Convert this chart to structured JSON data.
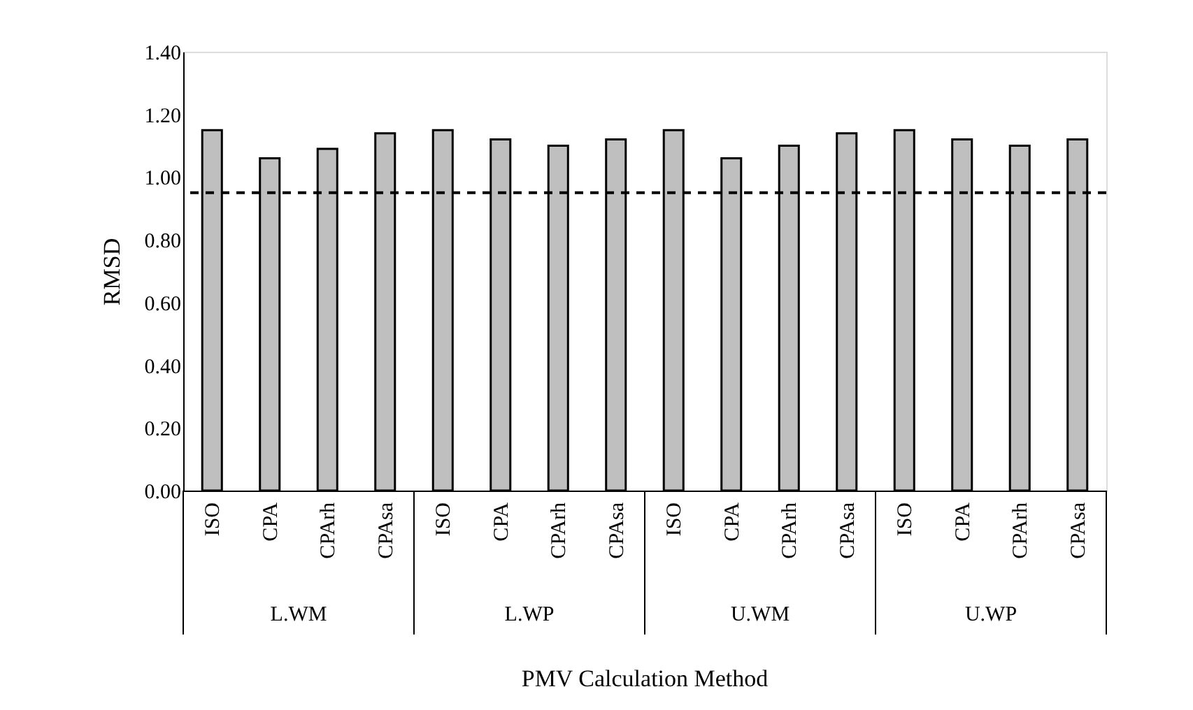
{
  "chart_data": {
    "type": "bar",
    "xlabel": "PMV Calculation Method",
    "ylabel": "RMSD",
    "categories": [
      "ISO",
      "CPA",
      "CPArh",
      "CPAsa",
      "ISO",
      "CPA",
      "CPArh",
      "CPAsa",
      "ISO",
      "CPA",
      "CPArh",
      "CPAsa",
      "ISO",
      "CPA",
      "CPArh",
      "CPAsa"
    ],
    "values": [
      1.15,
      1.06,
      1.09,
      1.14,
      1.15,
      1.12,
      1.1,
      1.12,
      1.15,
      1.06,
      1.1,
      1.14,
      1.15,
      1.12,
      1.1,
      1.12
    ],
    "color": "#bfbfbf",
    "ylim": [
      0,
      1.4
    ],
    "yticks": [
      {
        "value": 0,
        "label": "0.00"
      },
      {
        "value": 0.2,
        "label": "0.20"
      },
      {
        "value": 0.4,
        "label": "0.40"
      },
      {
        "value": 0.6,
        "label": "0.60"
      },
      {
        "value": 0.8,
        "label": "0.80"
      },
      {
        "value": 1.0,
        "label": "1.00"
      },
      {
        "value": 1.2,
        "label": "1.20"
      },
      {
        "value": 1.4,
        "label": "1.40"
      }
    ],
    "ref_lines": [
      {
        "axis": "y",
        "value": 0.95,
        "line_style": "dashed",
        "color": "#000000"
      }
    ],
    "annotations": [
      "L.WM",
      "L.WP",
      "U.WM",
      "U.WP"
    ],
    "grid": false
  }
}
